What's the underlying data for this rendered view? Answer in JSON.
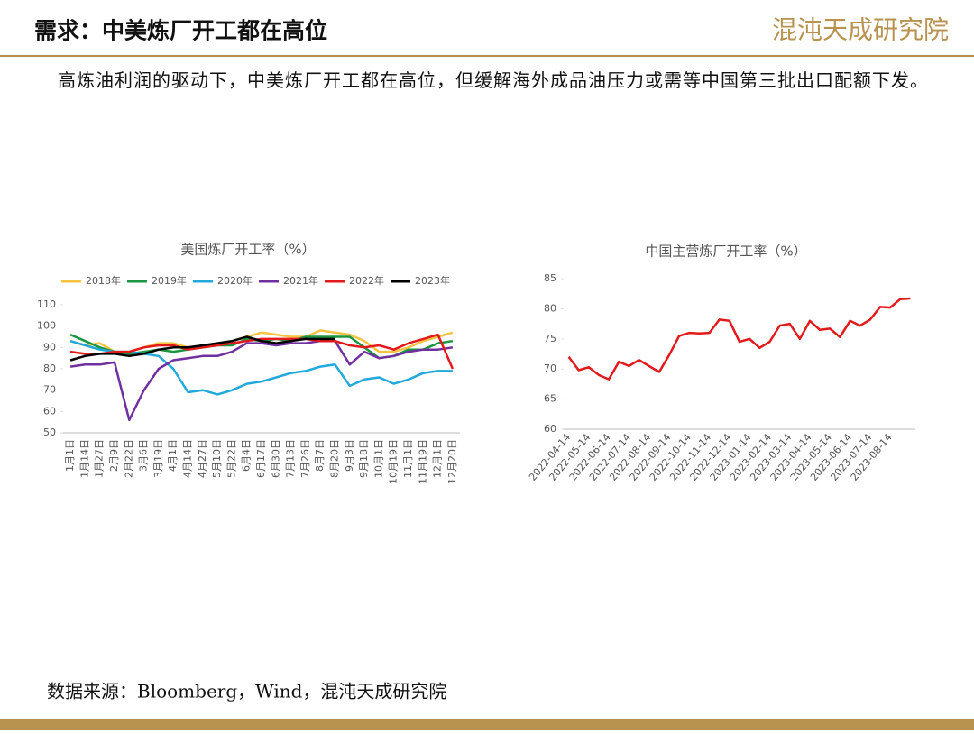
{
  "header": {
    "title": "需求：中美炼厂开工都在高位",
    "logo": "混沌天成研究院"
  },
  "body": {
    "text": "高炼油利润的驱动下，中美炼厂开工都在高位，但缓解海外成品油压力或需等中国第三批出口配额下发。"
  },
  "footer": {
    "source": "数据来源：Bloomberg，Wind，混沌天成研究院"
  },
  "chart_data": [
    {
      "type": "line",
      "title": "美国炼厂开工率（%）",
      "categories": [
        "1月1日",
        "1月14日",
        "1月27日",
        "2月9日",
        "2月22日",
        "3月6日",
        "3月19日",
        "4月1日",
        "4月14日",
        "4月27日",
        "5月10日",
        "5月22日",
        "6月4日",
        "6月17日",
        "6月30日",
        "7月13日",
        "7月26日",
        "8月7日",
        "8月20日",
        "9月3日",
        "9月18日",
        "10月1日",
        "10月19日",
        "11月1日",
        "11月19日",
        "12月1日",
        "12月20日"
      ],
      "series": [
        {
          "name": "2018年",
          "color": "#f5c342",
          "values": [
            93,
            91,
            92,
            88,
            88,
            90,
            92,
            92,
            90,
            90,
            91,
            93,
            95,
            97,
            96,
            95,
            95,
            98,
            97,
            96,
            93,
            88,
            88,
            90,
            93,
            95,
            97
          ]
        },
        {
          "name": "2019年",
          "color": "#1a9641",
          "values": [
            96,
            93,
            90,
            88,
            87,
            88,
            89,
            88,
            89,
            90,
            91,
            91,
            94,
            93,
            94,
            93,
            95,
            95,
            95,
            95,
            90,
            85,
            86,
            89,
            89,
            92,
            93
          ]
        },
        {
          "name": "2020年",
          "color": "#22a9dc",
          "values": [
            93,
            91,
            89,
            88,
            88,
            87,
            86,
            80,
            69,
            70,
            68,
            70,
            73,
            74,
            76,
            78,
            79,
            81,
            82,
            72,
            75,
            76,
            73,
            75,
            78,
            79,
            79
          ]
        },
        {
          "name": "2021年",
          "color": "#7030a0",
          "values": [
            81,
            82,
            82,
            83,
            56,
            70,
            80,
            84,
            85,
            86,
            86,
            88,
            92,
            92,
            91,
            92,
            92,
            93,
            93,
            82,
            88,
            85,
            86,
            88,
            89,
            89,
            90
          ]
        },
        {
          "name": "2022年",
          "color": "#e31a1c",
          "values": [
            88,
            87,
            87,
            88,
            88,
            90,
            91,
            91,
            89,
            90,
            91,
            92,
            93,
            94,
            94,
            94,
            94,
            93,
            93,
            91,
            90,
            91,
            89,
            92,
            94,
            96,
            80
          ]
        },
        {
          "name": "2023年",
          "color": "#000000",
          "values": [
            84,
            86,
            87,
            87,
            86,
            87,
            89,
            90,
            90,
            91,
            92,
            93,
            95,
            93,
            92,
            93,
            94,
            94,
            94,
            null,
            null,
            null,
            null,
            null,
            null,
            null,
            null
          ]
        }
      ],
      "ylim": [
        50,
        110
      ],
      "yticks": [
        50,
        60,
        70,
        80,
        90,
        100,
        110
      ],
      "grid": false,
      "legend": "top"
    },
    {
      "type": "line",
      "title": "中国主营炼厂开工率（%）",
      "categories": [
        "2022-04-14",
        null,
        "2022-05-14",
        null,
        "2022-06-14",
        null,
        "2022-07-14",
        null,
        "2022-08-14",
        null,
        "2022-09-14",
        null,
        "2022-10-14",
        null,
        "2022-11-14",
        null,
        "2022-12-14",
        null,
        "2023-01-14",
        null,
        "2023-02-14",
        null,
        "2023-03-14",
        null,
        "2023-04-14",
        null,
        "2023-05-14",
        null,
        "2023-06-14",
        null,
        "2023-07-14",
        null,
        "2023-08-14",
        null,
        null
      ],
      "values": [
        72,
        69.8,
        70.3,
        69,
        68.3,
        71.2,
        70.5,
        71.5,
        70.5,
        69.5,
        72.3,
        75.5,
        76,
        75.9,
        76,
        78.2,
        78,
        74.5,
        75,
        73.5,
        74.5,
        77.2,
        77.5,
        75,
        78,
        76.5,
        76.7,
        75.3,
        78,
        77.2,
        78.2,
        80.3,
        80.2,
        81.6,
        81.7
      ],
      "color": "#e31a1c",
      "ylim": [
        60,
        85
      ],
      "yticks": [
        60,
        65,
        70,
        75,
        80,
        85
      ],
      "grid": false
    }
  ]
}
